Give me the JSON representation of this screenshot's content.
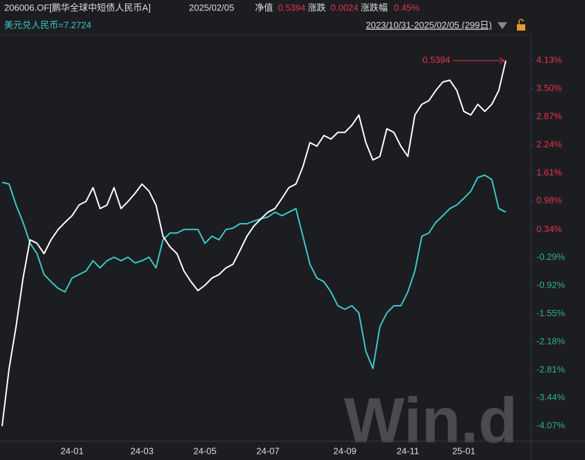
{
  "chart_data": {
    "type": "line",
    "code": "206006.OF[鹏华全球中短债人民币A]",
    "date": "2025/02/05",
    "nav_label": "净值",
    "nav": "0.5394",
    "change_label": "涨跌",
    "change": "0.0024",
    "change_pct_label": "涨跌幅",
    "change_pct": "0.45%",
    "fx": "美元兑人民币=7.2724",
    "range": "2023/10/31-2025/02/05 (299日)",
    "watermark": "Win.d",
    "up_color": "#e8334a",
    "down_color": "#2cb67d",
    "categories": [
      null,
      null,
      null,
      null,
      null,
      null,
      null,
      null,
      null,
      null,
      "24-01",
      null,
      null,
      null,
      null,
      null,
      null,
      null,
      null,
      null,
      "24-03",
      null,
      null,
      null,
      null,
      null,
      null,
      null,
      null,
      "24-05",
      null,
      null,
      null,
      null,
      null,
      null,
      null,
      null,
      "24-07",
      null,
      null,
      null,
      null,
      null,
      null,
      null,
      null,
      null,
      null,
      "24-09",
      null,
      null,
      null,
      null,
      null,
      null,
      null,
      null,
      "24-11",
      null,
      null,
      null,
      null,
      null,
      null,
      null,
      "25-01",
      null,
      null,
      null,
      null,
      null,
      null
    ],
    "series": [
      {
        "name": "206006.OF[鹏华全球中短债人民币A]",
        "color": "#ffffff",
        "values": [
          -4.07,
          -2.78,
          -1.84,
          -0.75,
          0.11,
          0.03,
          -0.2,
          0.11,
          0.34,
          0.5,
          0.65,
          0.89,
          0.97,
          1.28,
          0.81,
          0.89,
          1.28,
          0.81,
          0.97,
          1.15,
          1.36,
          1.2,
          0.89,
          0.19,
          -0.05,
          -0.2,
          -0.59,
          -0.83,
          -1.03,
          -0.91,
          -0.75,
          -0.67,
          -0.52,
          -0.44,
          -0.13,
          0.19,
          0.42,
          0.58,
          0.73,
          0.81,
          1.04,
          1.28,
          1.36,
          1.75,
          2.29,
          2.21,
          2.45,
          2.37,
          2.52,
          2.52,
          2.68,
          2.91,
          2.29,
          1.9,
          1.98,
          2.6,
          2.52,
          2.21,
          1.98,
          2.91,
          3.15,
          3.23,
          3.46,
          3.65,
          3.69,
          3.46,
          2.99,
          2.91,
          3.15,
          2.99,
          3.15,
          3.46,
          4.13
        ]
      },
      {
        "name": "美元兑人民币=7.2724",
        "color": "#3cc8c8",
        "values": [
          1.4,
          1.36,
          0.89,
          0.5,
          0.03,
          -0.2,
          -0.67,
          -0.83,
          -0.98,
          -1.06,
          -0.75,
          -0.67,
          -0.59,
          -0.36,
          -0.52,
          -0.36,
          -0.28,
          -0.36,
          -0.28,
          -0.41,
          -0.36,
          -0.28,
          -0.52,
          0.11,
          0.26,
          0.26,
          0.34,
          0.34,
          0.34,
          0.03,
          0.19,
          0.11,
          0.34,
          0.37,
          0.47,
          0.47,
          0.53,
          0.58,
          0.62,
          0.73,
          0.65,
          0.73,
          0.81,
          0.19,
          -0.44,
          -0.75,
          -0.83,
          -1.06,
          -1.37,
          -1.45,
          -1.37,
          -1.53,
          -2.39,
          -2.78,
          -1.84,
          -1.53,
          -1.37,
          -1.37,
          -1.06,
          -0.59,
          0.19,
          0.26,
          0.5,
          0.65,
          0.81,
          0.89,
          1.04,
          1.2,
          1.51,
          1.56,
          1.46,
          0.81,
          0.73
        ]
      }
    ],
    "ylim": [
      -4.41,
      4.71
    ],
    "yticks": [
      {
        "value": 4.13,
        "label": "4.13%"
      },
      {
        "value": 3.5,
        "label": "3.50%"
      },
      {
        "value": 2.87,
        "label": "2.87%"
      },
      {
        "value": 2.24,
        "label": "2.24%"
      },
      {
        "value": 1.61,
        "label": "1.61%"
      },
      {
        "value": 0.98,
        "label": "0.98%"
      },
      {
        "value": 0.34,
        "label": "0.34%"
      },
      {
        "value": -0.29,
        "label": "-0.29%"
      },
      {
        "value": -0.92,
        "label": "-0.92%"
      },
      {
        "value": -1.55,
        "label": "-1.55%"
      },
      {
        "value": -2.18,
        "label": "-2.18%"
      },
      {
        "value": -2.81,
        "label": "-2.81%"
      },
      {
        "value": -3.44,
        "label": "-3.44%"
      },
      {
        "value": -4.07,
        "label": "-4.07%"
      }
    ],
    "grid": false
  }
}
